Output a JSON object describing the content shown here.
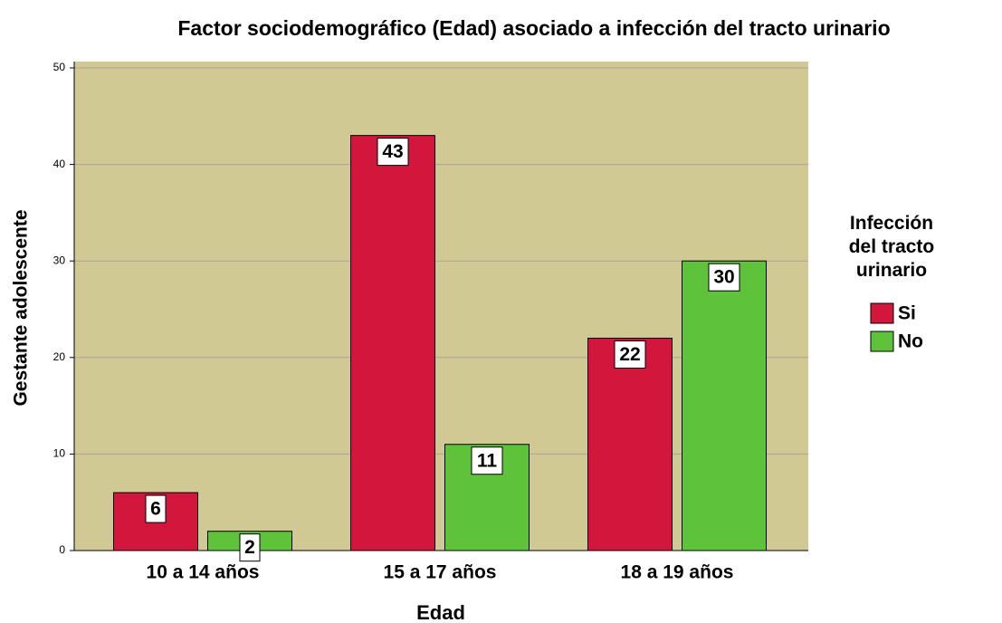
{
  "chart_data": {
    "type": "bar",
    "title": "Factor sociodemográfico (Edad) asociado a infección del tracto urinario",
    "x_label": "Edad",
    "y_label": "Gestante adolescente",
    "legend_title": "Infección del tracto urinario",
    "categories": [
      "10 a 14 años",
      "15 a 17 años",
      "18 a 19 años"
    ],
    "series": [
      {
        "name": "Si",
        "color": "#d3163c",
        "values": [
          6,
          43,
          22
        ]
      },
      {
        "name": "No",
        "color": "#5ec23b",
        "values": [
          2,
          11,
          30
        ]
      }
    ],
    "ylim": [
      0,
      50
    ],
    "yticks": [
      0,
      10,
      20,
      30,
      40,
      50
    ],
    "grid": true,
    "background": "#d1c994",
    "legend_position": "right"
  }
}
